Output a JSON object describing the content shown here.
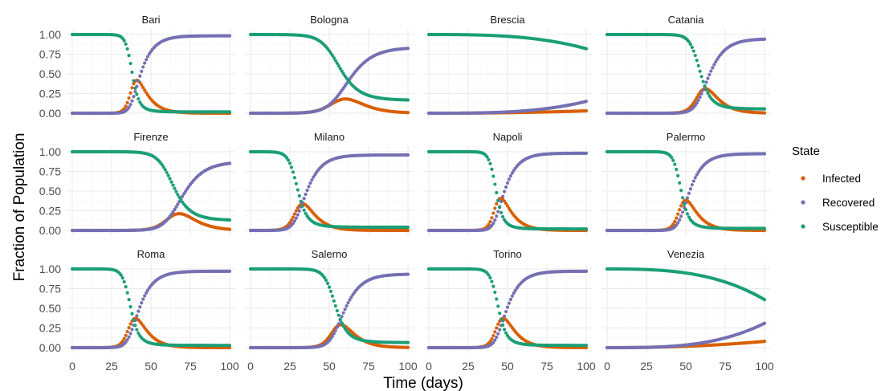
{
  "chart_data": {
    "type": "scatter",
    "facet_layout": "4 columns x 3 rows, shared axes",
    "xlabel": "Time (days)",
    "ylabel": "Fraction of Population",
    "xlim": [
      0,
      100
    ],
    "ylim": [
      0,
      1
    ],
    "x_ticks": [
      "0",
      "25",
      "50",
      "75",
      "100"
    ],
    "y_ticks": [
      "0.00",
      "0.25",
      "0.50",
      "0.75",
      "1.00"
    ],
    "grid": true,
    "legend": {
      "title": "State",
      "position": "right",
      "entries": [
        {
          "name": "Infected",
          "color": "#d95f02"
        },
        {
          "name": "Recovered",
          "color": "#7570b3"
        },
        {
          "name": "Susceptible",
          "color": "#1b9e77"
        }
      ]
    },
    "model": "SIR-like curves, sampled at t = 0..100 (1 day)",
    "panels": [
      {
        "title": "Bari",
        "peak_day": 45,
        "peak_infected": 0.42,
        "final_recovered": 0.99,
        "final_infected": 0.0
      },
      {
        "title": "Bologna",
        "peak_day": 65,
        "peak_infected": 0.18,
        "final_recovered": 0.83,
        "final_infected": 0.01
      },
      {
        "title": "Brescia",
        "peak_day": 95,
        "peak_infected": 0.03,
        "susceptible_end": 0.82,
        "recovered_end": 0.15,
        "infected_end": 0.03
      },
      {
        "title": "Catania",
        "peak_day": 66,
        "peak_infected": 0.31,
        "final_recovered": 0.94,
        "final_infected": 0.0
      },
      {
        "title": "Firenze",
        "peak_day": 72,
        "peak_infected": 0.21,
        "final_recovered": 0.86,
        "final_infected": 0.01
      },
      {
        "title": "Milano",
        "peak_day": 37,
        "peak_infected": 0.34,
        "final_recovered": 0.95,
        "final_infected": 0.0
      },
      {
        "title": "Napoli",
        "peak_day": 50,
        "peak_infected": 0.42,
        "final_recovered": 0.98,
        "final_infected": 0.0
      },
      {
        "title": "Palermo",
        "peak_day": 54,
        "peak_infected": 0.45,
        "final_recovered": 0.98,
        "final_infected": 0.0
      },
      {
        "title": "Roma",
        "peak_day": 44,
        "peak_infected": 0.37,
        "final_recovered": 0.97,
        "final_infected": 0.0
      },
      {
        "title": "Salerno",
        "peak_day": 61,
        "peak_infected": 0.29,
        "final_recovered": 0.92,
        "final_infected": 0.0
      },
      {
        "title": "Torino",
        "peak_day": 51,
        "peak_infected": 0.37,
        "final_recovered": 0.96,
        "final_infected": 0.0
      },
      {
        "title": "Venezia",
        "peak_day": 98,
        "peak_infected": 0.08,
        "susceptible_end": 0.62,
        "recovered_end": 0.31,
        "infected_end": 0.08
      }
    ]
  }
}
